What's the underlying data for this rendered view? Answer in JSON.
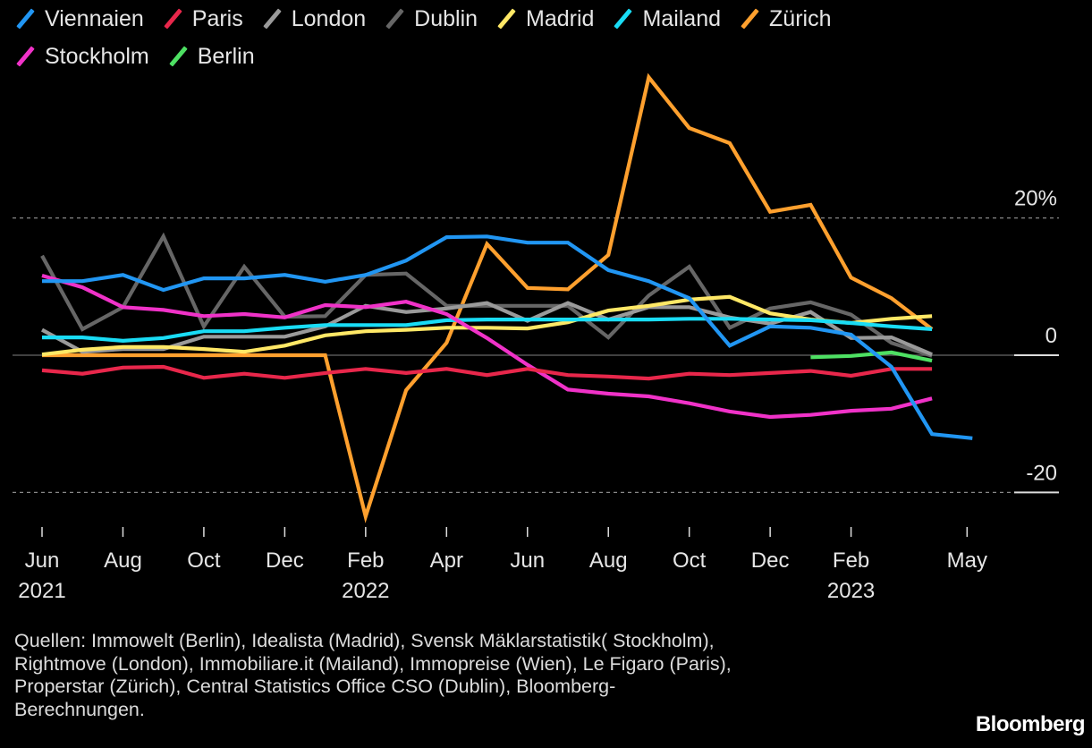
{
  "chart_data": {
    "type": "line",
    "title": "",
    "xlabel": "",
    "ylabel": "",
    "ylim": [
      -25,
      42
    ],
    "y_ticks": [
      {
        "value": 20,
        "label": "20%"
      },
      {
        "value": 0,
        "label": "0"
      },
      {
        "value": -20,
        "label": "-20"
      }
    ],
    "grid": "dotted at ±20, solid zero line",
    "legend_position": "top-left",
    "x": [
      "Jun 2021",
      "Jul 2021",
      "Aug 2021",
      "Sep 2021",
      "Oct 2021",
      "Nov 2021",
      "Dec 2021",
      "Jan 2022",
      "Feb 2022",
      "Mar 2022",
      "Apr 2022",
      "May 2022",
      "Jun 2022",
      "Jul 2022",
      "Aug 2022",
      "Sep 2022",
      "Oct 2022",
      "Nov 2022",
      "Dec 2022",
      "Jan 2023",
      "Feb 2023",
      "Mar 2023",
      "Apr 2023",
      "May 2023"
    ],
    "x_ticks": [
      {
        "index": 0,
        "label": "Jun",
        "sublabel": "2021"
      },
      {
        "index": 2,
        "label": "Aug",
        "sublabel": ""
      },
      {
        "index": 4,
        "label": "Oct",
        "sublabel": ""
      },
      {
        "index": 6,
        "label": "Dec",
        "sublabel": ""
      },
      {
        "index": 8,
        "label": "Feb",
        "sublabel": "2022"
      },
      {
        "index": 10,
        "label": "Apr",
        "sublabel": ""
      },
      {
        "index": 12,
        "label": "Jun",
        "sublabel": ""
      },
      {
        "index": 14,
        "label": "Aug",
        "sublabel": ""
      },
      {
        "index": 16,
        "label": "Oct",
        "sublabel": ""
      },
      {
        "index": 18,
        "label": "Dec",
        "sublabel": ""
      },
      {
        "index": 20,
        "label": "Feb",
        "sublabel": "2023"
      },
      {
        "index": 23,
        "label": "May",
        "sublabel": ""
      }
    ],
    "series": [
      {
        "name": "Viennaien",
        "color": "#2196f3",
        "start": 0,
        "values": [
          10.8,
          10.8,
          11.7,
          9.5,
          11.2,
          11.2,
          11.7,
          10.7,
          11.7,
          13.8,
          17.2,
          17.3,
          16.4,
          16.4,
          12.4,
          10.8,
          8.3,
          1.4,
          4.2,
          4.0,
          3.0,
          -1.7,
          -11.5,
          -12.1
        ]
      },
      {
        "name": "Paris",
        "color": "#e8274b",
        "start": 0,
        "values": [
          -2.2,
          -2.7,
          -1.8,
          -1.7,
          -3.3,
          -2.7,
          -3.3,
          -2.6,
          -2.0,
          -2.6,
          -2.0,
          -2.9,
          -2.0,
          -2.9,
          -3.1,
          -3.4,
          -2.7,
          -2.9,
          -2.6,
          -2.3,
          -3.0,
          -2.0,
          -2.0
        ]
      },
      {
        "name": "London",
        "color": "#9a9a9a",
        "start": 0,
        "values": [
          3.7,
          0.5,
          0.9,
          0.9,
          2.7,
          2.7,
          2.7,
          4.2,
          7.2,
          6.3,
          6.8,
          7.6,
          5.0,
          7.6,
          5.2,
          7.0,
          7.0,
          5.5,
          4.6,
          6.3,
          2.5,
          2.6,
          0.1
        ]
      },
      {
        "name": "Dublin",
        "color": "#666666",
        "start": 0,
        "values": [
          14.5,
          3.8,
          7.0,
          17.3,
          4.2,
          12.9,
          5.6,
          5.7,
          11.7,
          11.9,
          7.2,
          7.2,
          7.2,
          7.2,
          2.6,
          8.7,
          12.9,
          4.0,
          6.8,
          7.7,
          5.9,
          1.8,
          -0.1
        ]
      },
      {
        "name": "Madrid",
        "color": "#ffe866",
        "start": 0,
        "values": [
          0.1,
          0.8,
          1.2,
          1.2,
          0.9,
          0.5,
          1.4,
          2.9,
          3.5,
          3.7,
          4.0,
          4.0,
          3.9,
          4.8,
          6.5,
          7.2,
          8.1,
          8.5,
          6.1,
          5.2,
          4.7,
          5.3,
          5.7
        ]
      },
      {
        "name": "Mailand",
        "color": "#19dcf5",
        "start": 0,
        "values": [
          2.6,
          2.6,
          2.1,
          2.5,
          3.5,
          3.5,
          4.0,
          4.4,
          4.4,
          4.4,
          5.1,
          5.2,
          5.2,
          5.2,
          5.2,
          5.2,
          5.3,
          5.3,
          5.2,
          5.1,
          4.7,
          4.2,
          3.8
        ]
      },
      {
        "name": "Zürich",
        "color": "#ffa02e",
        "start": 0,
        "values": [
          0,
          0,
          0,
          0,
          0,
          0,
          0,
          0,
          -23.5,
          -5.1,
          1.8,
          16.2,
          9.8,
          9.6,
          14.6,
          40.5,
          33.1,
          30.9,
          20.9,
          21.9,
          11.3,
          8.3,
          3.8
        ]
      },
      {
        "name": "Stockholm",
        "color": "#f032c8",
        "start": 0,
        "values": [
          11.6,
          9.9,
          7.0,
          6.6,
          5.7,
          6.0,
          5.5,
          7.3,
          7.0,
          7.8,
          6.0,
          2.5,
          -1.4,
          -5.0,
          -5.6,
          -6.0,
          -7.0,
          -8.2,
          -9.0,
          -8.7,
          -8.1,
          -7.8,
          -6.3
        ]
      },
      {
        "name": "Berlin",
        "color": "#4ee063",
        "start": 19,
        "values": [
          -0.3,
          -0.1,
          0.4,
          -0.8
        ]
      }
    ],
    "draw_order": [
      "Zürich",
      "Dublin",
      "London",
      "Madrid",
      "Mailand",
      "Stockholm",
      "Paris",
      "Berlin",
      "Viennaien"
    ]
  },
  "legend_rows": [
    [
      "Viennaien",
      "Paris",
      "London",
      "Dublin",
      "Madrid",
      "Mailand",
      "Zürich"
    ],
    [
      "Stockholm",
      "Berlin"
    ]
  ],
  "footer": {
    "lines": [
      "Quellen: Immowelt (Berlin), Idealista (Madrid), Svensk Mäklarstatistik( Stockholm),",
      "Rightmove (London), Immobiliare.it (Mailand), Immopreise (Wien), Le Figaro (Paris),",
      "Properstar (Zürich), Central Statistics Office CSO (Dublin), Bloomberg-",
      "Berechnungen."
    ],
    "logo": "Bloomberg"
  }
}
